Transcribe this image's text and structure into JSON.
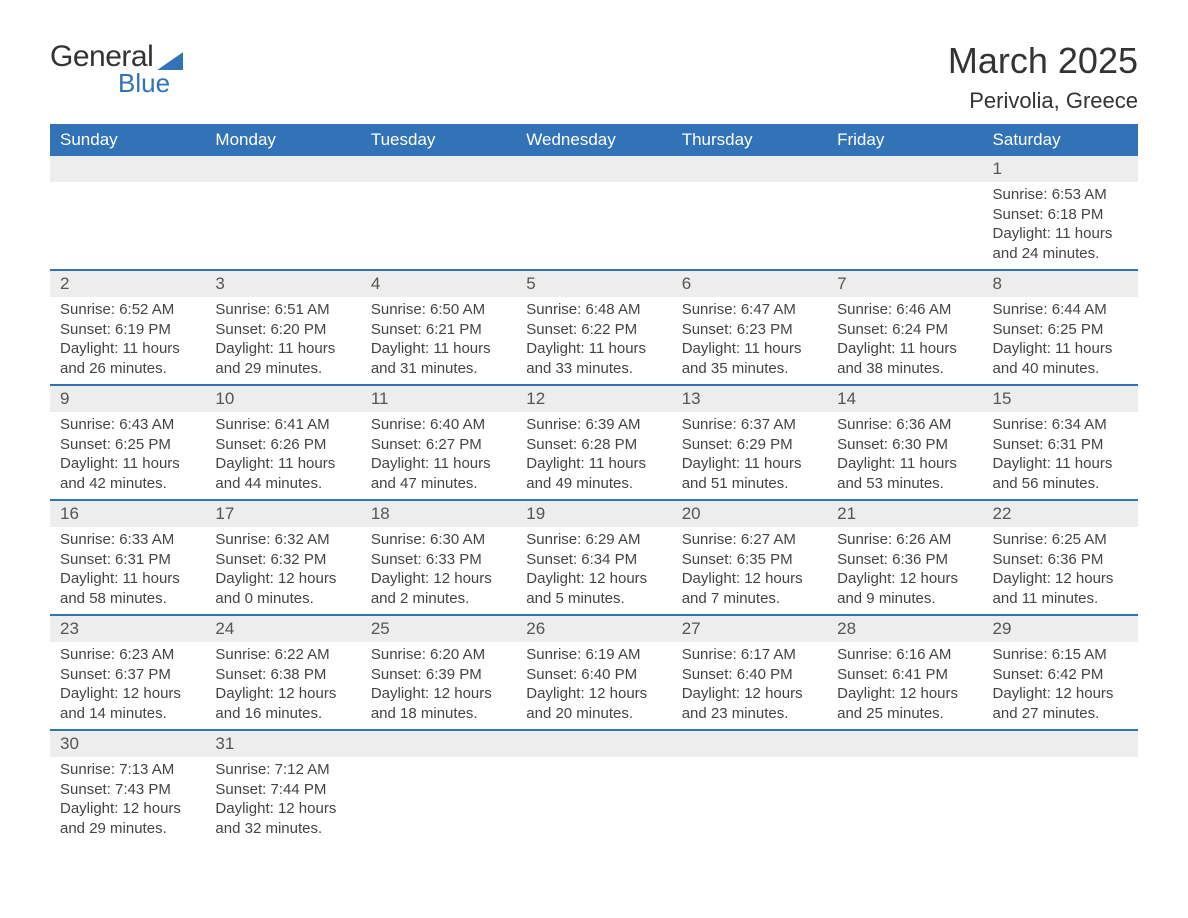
{
  "logo": {
    "word1": "General",
    "word2": "Blue"
  },
  "title": "March 2025",
  "location": "Perivolia, Greece",
  "colors": {
    "header_bg": "#3173b6",
    "header_text": "#ffffff",
    "daynum_bg": "#ededed",
    "row_divider": "#3173b6",
    "body_text": "#444444",
    "logo_accent": "#3173b6",
    "page_bg": "#ffffff"
  },
  "typography": {
    "title_fontsize": 36,
    "location_fontsize": 22,
    "header_fontsize": 17,
    "daynum_fontsize": 17,
    "body_fontsize": 15
  },
  "weekdays": [
    "Sunday",
    "Monday",
    "Tuesday",
    "Wednesday",
    "Thursday",
    "Friday",
    "Saturday"
  ],
  "weeks": [
    [
      null,
      null,
      null,
      null,
      null,
      null,
      {
        "n": "1",
        "sunrise": "6:53 AM",
        "sunset": "6:18 PM",
        "dl_h": "11",
        "dl_m": "24"
      }
    ],
    [
      {
        "n": "2",
        "sunrise": "6:52 AM",
        "sunset": "6:19 PM",
        "dl_h": "11",
        "dl_m": "26"
      },
      {
        "n": "3",
        "sunrise": "6:51 AM",
        "sunset": "6:20 PM",
        "dl_h": "11",
        "dl_m": "29"
      },
      {
        "n": "4",
        "sunrise": "6:50 AM",
        "sunset": "6:21 PM",
        "dl_h": "11",
        "dl_m": "31"
      },
      {
        "n": "5",
        "sunrise": "6:48 AM",
        "sunset": "6:22 PM",
        "dl_h": "11",
        "dl_m": "33"
      },
      {
        "n": "6",
        "sunrise": "6:47 AM",
        "sunset": "6:23 PM",
        "dl_h": "11",
        "dl_m": "35"
      },
      {
        "n": "7",
        "sunrise": "6:46 AM",
        "sunset": "6:24 PM",
        "dl_h": "11",
        "dl_m": "38"
      },
      {
        "n": "8",
        "sunrise": "6:44 AM",
        "sunset": "6:25 PM",
        "dl_h": "11",
        "dl_m": "40"
      }
    ],
    [
      {
        "n": "9",
        "sunrise": "6:43 AM",
        "sunset": "6:25 PM",
        "dl_h": "11",
        "dl_m": "42"
      },
      {
        "n": "10",
        "sunrise": "6:41 AM",
        "sunset": "6:26 PM",
        "dl_h": "11",
        "dl_m": "44"
      },
      {
        "n": "11",
        "sunrise": "6:40 AM",
        "sunset": "6:27 PM",
        "dl_h": "11",
        "dl_m": "47"
      },
      {
        "n": "12",
        "sunrise": "6:39 AM",
        "sunset": "6:28 PM",
        "dl_h": "11",
        "dl_m": "49"
      },
      {
        "n": "13",
        "sunrise": "6:37 AM",
        "sunset": "6:29 PM",
        "dl_h": "11",
        "dl_m": "51"
      },
      {
        "n": "14",
        "sunrise": "6:36 AM",
        "sunset": "6:30 PM",
        "dl_h": "11",
        "dl_m": "53"
      },
      {
        "n": "15",
        "sunrise": "6:34 AM",
        "sunset": "6:31 PM",
        "dl_h": "11",
        "dl_m": "56"
      }
    ],
    [
      {
        "n": "16",
        "sunrise": "6:33 AM",
        "sunset": "6:31 PM",
        "dl_h": "11",
        "dl_m": "58"
      },
      {
        "n": "17",
        "sunrise": "6:32 AM",
        "sunset": "6:32 PM",
        "dl_h": "12",
        "dl_m": "0"
      },
      {
        "n": "18",
        "sunrise": "6:30 AM",
        "sunset": "6:33 PM",
        "dl_h": "12",
        "dl_m": "2"
      },
      {
        "n": "19",
        "sunrise": "6:29 AM",
        "sunset": "6:34 PM",
        "dl_h": "12",
        "dl_m": "5"
      },
      {
        "n": "20",
        "sunrise": "6:27 AM",
        "sunset": "6:35 PM",
        "dl_h": "12",
        "dl_m": "7"
      },
      {
        "n": "21",
        "sunrise": "6:26 AM",
        "sunset": "6:36 PM",
        "dl_h": "12",
        "dl_m": "9"
      },
      {
        "n": "22",
        "sunrise": "6:25 AM",
        "sunset": "6:36 PM",
        "dl_h": "12",
        "dl_m": "11"
      }
    ],
    [
      {
        "n": "23",
        "sunrise": "6:23 AM",
        "sunset": "6:37 PM",
        "dl_h": "12",
        "dl_m": "14"
      },
      {
        "n": "24",
        "sunrise": "6:22 AM",
        "sunset": "6:38 PM",
        "dl_h": "12",
        "dl_m": "16"
      },
      {
        "n": "25",
        "sunrise": "6:20 AM",
        "sunset": "6:39 PM",
        "dl_h": "12",
        "dl_m": "18"
      },
      {
        "n": "26",
        "sunrise": "6:19 AM",
        "sunset": "6:40 PM",
        "dl_h": "12",
        "dl_m": "20"
      },
      {
        "n": "27",
        "sunrise": "6:17 AM",
        "sunset": "6:40 PM",
        "dl_h": "12",
        "dl_m": "23"
      },
      {
        "n": "28",
        "sunrise": "6:16 AM",
        "sunset": "6:41 PM",
        "dl_h": "12",
        "dl_m": "25"
      },
      {
        "n": "29",
        "sunrise": "6:15 AM",
        "sunset": "6:42 PM",
        "dl_h": "12",
        "dl_m": "27"
      }
    ],
    [
      {
        "n": "30",
        "sunrise": "7:13 AM",
        "sunset": "7:43 PM",
        "dl_h": "12",
        "dl_m": "29"
      },
      {
        "n": "31",
        "sunrise": "7:12 AM",
        "sunset": "7:44 PM",
        "dl_h": "12",
        "dl_m": "32"
      },
      null,
      null,
      null,
      null,
      null
    ]
  ],
  "labels": {
    "sunrise": "Sunrise:",
    "sunset": "Sunset:",
    "daylight": "Daylight:",
    "hours": "hours",
    "and": "and",
    "minutes": "minutes."
  }
}
